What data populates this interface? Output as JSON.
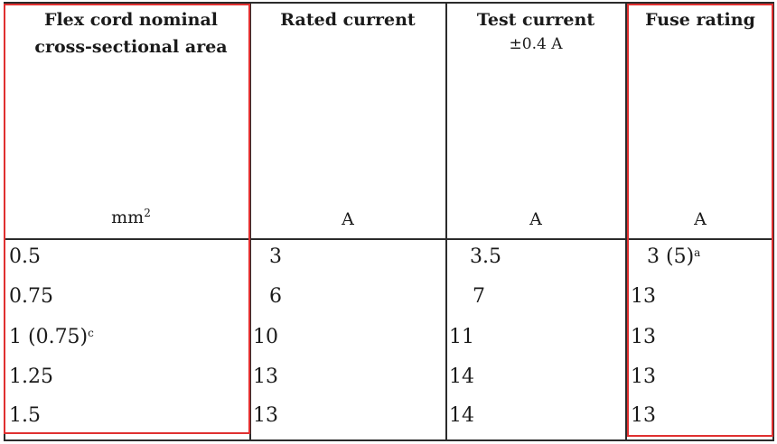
{
  "headers": {
    "area_line1": "Flex cord nominal",
    "area_line2": "cross-sectional area",
    "rated": "Rated current",
    "test": "Test current",
    "test_tolerance": "±0.4 A",
    "fuse": "Fuse rating"
  },
  "units": {
    "area_base": "mm",
    "area_exp": "2",
    "rated": "A",
    "test": "A",
    "fuse": "A"
  },
  "rows": [
    {
      "area": "0.5",
      "area_note": "",
      "rated": "3",
      "test": "3.5",
      "fuse": "3 (5)",
      "fuse_note": "a"
    },
    {
      "area": "0.75",
      "area_note": "",
      "rated": "6",
      "test": "7",
      "fuse": "13",
      "fuse_note": ""
    },
    {
      "area": "1 (0.75)",
      "area_note": "c",
      "rated": "10",
      "test": "11",
      "fuse": "13",
      "fuse_note": ""
    },
    {
      "area": "1.25",
      "area_note": "",
      "rated": "13",
      "test": "14",
      "fuse": "13",
      "fuse_note": ""
    },
    {
      "area": "1.5",
      "area_note": "",
      "rated": "13",
      "test": "14",
      "fuse": "13",
      "fuse_note": ""
    }
  ],
  "colors": {
    "highlight": "#e03030",
    "rule": "#2b2b2b"
  }
}
